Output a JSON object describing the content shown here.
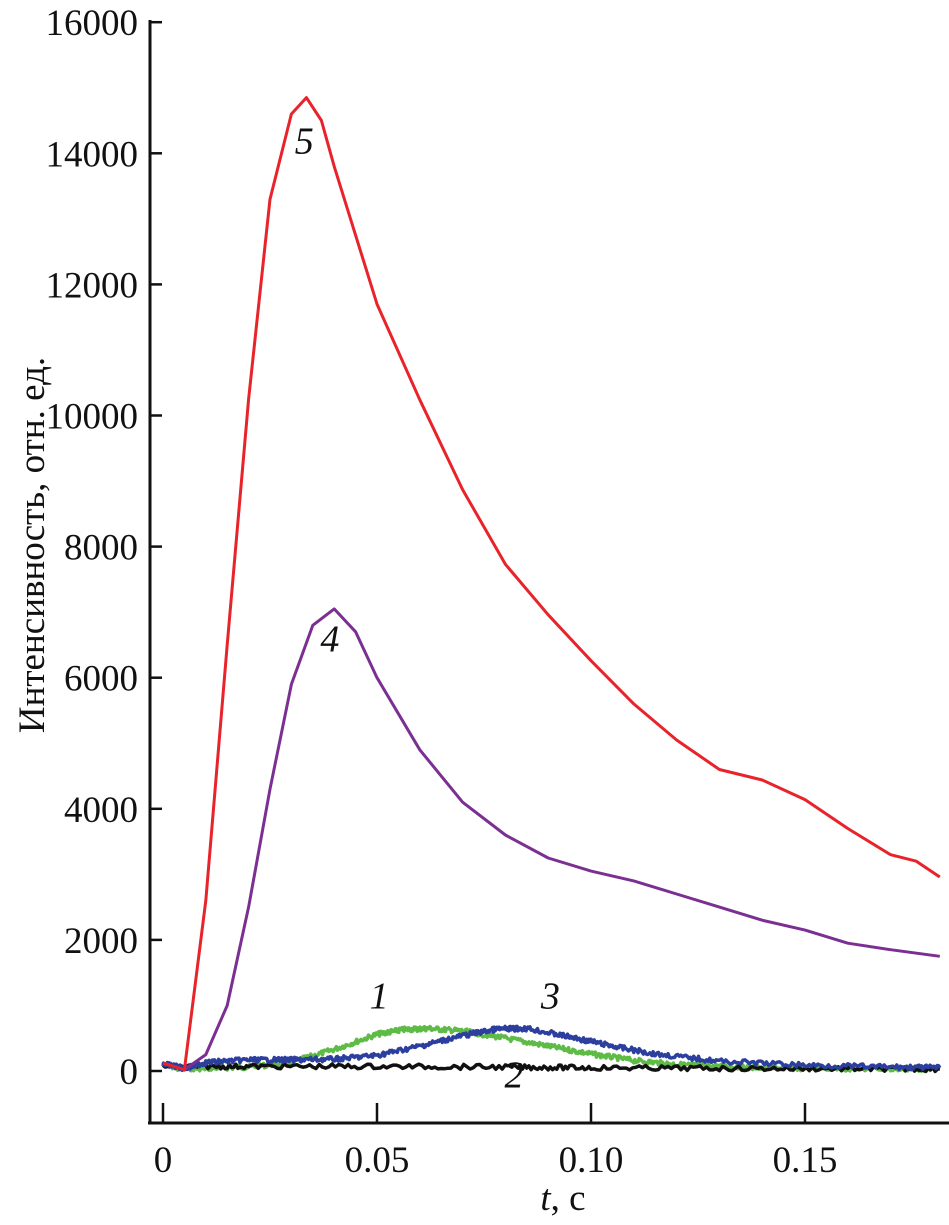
{
  "chart_data": {
    "type": "line",
    "title": "",
    "xlabel_var": "t",
    "xlabel_unit": ", c",
    "ylabel": "Интенсивность, отн. ед.",
    "xlim": [
      -0.003,
      0.1837
    ],
    "ylim": [
      -800,
      16000
    ],
    "xticks": [
      0,
      0.05,
      0.1,
      0.15
    ],
    "xtick_labels": [
      "0",
      "0.05",
      "0.10",
      "0.15"
    ],
    "yticks": [
      0,
      2000,
      4000,
      6000,
      8000,
      10000,
      12000,
      14000,
      16000
    ],
    "ytick_labels": [
      "0",
      "2000",
      "4000",
      "6000",
      "8000",
      "10000",
      "12000",
      "14000",
      "16000"
    ],
    "grid": false,
    "series": [
      {
        "name": "1",
        "color": "#5dbb46",
        "noisy": true,
        "x": [
          0.002,
          0.01,
          0.02,
          0.03,
          0.04,
          0.05,
          0.056,
          0.062,
          0.07,
          0.08,
          0.09,
          0.1,
          0.11,
          0.12,
          0.13,
          0.14,
          0.15,
          0.17,
          0.1815
        ],
        "y": [
          40,
          40,
          60,
          130,
          330,
          560,
          630,
          650,
          610,
          500,
          380,
          260,
          160,
          100,
          70,
          50,
          40,
          30,
          30
        ]
      },
      {
        "name": "2",
        "color": "#111111",
        "noisy": true,
        "x": [
          0.0,
          0.02,
          0.05,
          0.08,
          0.1,
          0.13,
          0.16,
          0.1815
        ],
        "y": [
          70,
          70,
          70,
          60,
          50,
          40,
          35,
          30
        ]
      },
      {
        "name": "3",
        "color": "#2c3f9e",
        "noisy": true,
        "x": [
          0.0,
          0.005,
          0.01,
          0.02,
          0.03,
          0.04,
          0.05,
          0.06,
          0.07,
          0.078,
          0.085,
          0.095,
          0.105,
          0.115,
          0.13,
          0.15,
          0.17,
          0.1815
        ],
        "y": [
          110,
          40,
          130,
          170,
          170,
          180,
          240,
          380,
          540,
          640,
          650,
          520,
          380,
          260,
          150,
          90,
          60,
          50
        ]
      },
      {
        "name": "4",
        "color": "#7b2f92",
        "noisy": false,
        "x": [
          0.0,
          0.005,
          0.01,
          0.015,
          0.02,
          0.025,
          0.03,
          0.035,
          0.04,
          0.045,
          0.05,
          0.06,
          0.07,
          0.08,
          0.09,
          0.1,
          0.11,
          0.12,
          0.13,
          0.14,
          0.15,
          0.16,
          0.17,
          0.1815
        ],
        "y": [
          120,
          20,
          250,
          1000,
          2500,
          4300,
          5900,
          6800,
          7050,
          6700,
          6000,
          4900,
          4100,
          3600,
          3250,
          3050,
          2900,
          2700,
          2500,
          2300,
          2150,
          1950,
          1850,
          1750
        ]
      },
      {
        "name": "5",
        "color": "#e8232a",
        "noisy": false,
        "x": [
          0.0,
          0.005,
          0.01,
          0.015,
          0.02,
          0.025,
          0.03,
          0.0335,
          0.037,
          0.04,
          0.05,
          0.06,
          0.07,
          0.08,
          0.09,
          0.1,
          0.11,
          0.12,
          0.13,
          0.14,
          0.15,
          0.16,
          0.17,
          0.176,
          0.1815
        ],
        "y": [
          120,
          20,
          2600,
          6500,
          10250,
          13300,
          14600,
          14850,
          14500,
          13800,
          11700,
          10240,
          8870,
          7730,
          6960,
          6260,
          5600,
          5050,
          4600,
          4440,
          4140,
          3700,
          3300,
          3200,
          2960
        ]
      }
    ],
    "annotations": [
      {
        "text": "5",
        "x": 0.033,
        "y": 14000
      },
      {
        "text": "4",
        "x": 0.039,
        "y": 6400
      },
      {
        "text": "1",
        "x": 0.0505,
        "y": 950
      },
      {
        "text": "3",
        "x": 0.0905,
        "y": 950
      },
      {
        "text": "2",
        "x": 0.082,
        "y": -250
      }
    ]
  }
}
